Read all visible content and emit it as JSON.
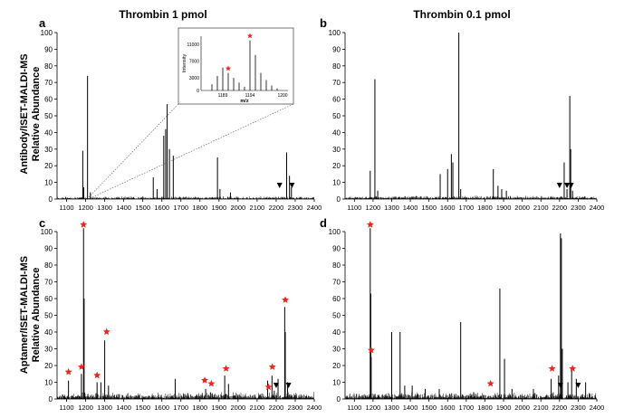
{
  "figure": {
    "column_titles": [
      "Thrombin 1 pmol",
      "Thrombin 0.1 pmol"
    ],
    "row_labels": [
      [
        "Antibody/ISET-MALDI-MS",
        "Relative Abundance"
      ],
      [
        "Aptamer/ISET-MALDI-MS",
        "Relative Abundance"
      ]
    ],
    "colors": {
      "spectrum": "#000000",
      "star": "#e8261c",
      "triangle": "#000000"
    }
  },
  "chart_data": [
    {
      "type": "line",
      "panel": "a",
      "xlim": [
        1050,
        2400
      ],
      "ylim": [
        0,
        100
      ],
      "xticks": [
        "1100",
        "1200",
        "1300",
        "1400",
        "1500",
        "1600",
        "1700",
        "1800",
        "1900",
        "2000",
        "2100",
        "2200",
        "2300",
        "2400"
      ],
      "yticks": [
        "0",
        "10",
        "20",
        "30",
        "40",
        "50",
        "60",
        "70",
        "80",
        "90",
        "100"
      ],
      "noise_level": 1.2,
      "peaks": [
        [
          1185,
          29
        ],
        [
          1190,
          7
        ],
        [
          1210,
          74
        ],
        [
          1225,
          4
        ],
        [
          1555,
          13
        ],
        [
          1575,
          6
        ],
        [
          1610,
          38
        ],
        [
          1620,
          42
        ],
        [
          1628,
          57
        ],
        [
          1640,
          30
        ],
        [
          1660,
          26
        ],
        [
          1892,
          25
        ],
        [
          1905,
          6
        ],
        [
          1960,
          4
        ],
        [
          2255,
          28
        ],
        [
          2270,
          14
        ],
        [
          2280,
          7
        ]
      ],
      "stars": [],
      "triangles": [
        2218,
        2283
      ],
      "inset": {
        "xlabel": "m/z",
        "ylabel": "Intensity",
        "xticks": [
          "1189",
          "1194",
          "1200"
        ],
        "yticks": [
          "0",
          "3000",
          "7000",
          "11000"
        ],
        "xlim": [
          1185,
          1201
        ],
        "ylim": [
          0,
          13000
        ],
        "peaks": [
          [
            1187,
            1500
          ],
          [
            1188,
            3500
          ],
          [
            1189,
            5500
          ],
          [
            1190,
            4200
          ],
          [
            1191,
            3000
          ],
          [
            1192,
            1900
          ],
          [
            1193,
            900
          ],
          [
            1194,
            12000
          ],
          [
            1195,
            8500
          ],
          [
            1196,
            4200
          ],
          [
            1197,
            2500
          ],
          [
            1198,
            1200
          ],
          [
            1199,
            500
          ]
        ],
        "stars": [
          1190,
          1194
        ]
      }
    },
    {
      "type": "line",
      "panel": "b",
      "xlim": [
        1050,
        2400
      ],
      "ylim": [
        0,
        100
      ],
      "xticks": [
        "1100",
        "1200",
        "1300",
        "1400",
        "1500",
        "1600",
        "1700",
        "1800",
        "1900",
        "2000",
        "2100",
        "2200",
        "2300",
        "2400"
      ],
      "yticks": [
        "0",
        "10",
        "20",
        "30",
        "40",
        "50",
        "60",
        "70",
        "80",
        "90",
        "100"
      ],
      "noise_level": 1.5,
      "peaks": [
        [
          1185,
          17
        ],
        [
          1210,
          72
        ],
        [
          1225,
          5
        ],
        [
          1560,
          15
        ],
        [
          1600,
          18
        ],
        [
          1620,
          27
        ],
        [
          1628,
          22
        ],
        [
          1660,
          100
        ],
        [
          1670,
          6
        ],
        [
          1845,
          18
        ],
        [
          1870,
          8
        ],
        [
          1890,
          6
        ],
        [
          1915,
          5
        ],
        [
          2225,
          22
        ],
        [
          2240,
          6
        ],
        [
          2255,
          62
        ],
        [
          2260,
          30
        ],
        [
          2270,
          5
        ]
      ],
      "stars": [],
      "triangles": [
        2200,
        2240,
        2262
      ]
    },
    {
      "type": "line",
      "panel": "c",
      "xlim": [
        1050,
        2400
      ],
      "ylim": [
        0,
        100
      ],
      "xticks": [
        "1100",
        "1200",
        "1300",
        "1400",
        "1500",
        "1600",
        "1700",
        "1800",
        "1900",
        "2000",
        "2100",
        "2200",
        "2300",
        "2400"
      ],
      "yticks": [
        "0",
        "10",
        "20",
        "30",
        "40",
        "50",
        "60",
        "70",
        "80",
        "90",
        "100"
      ],
      "noise_level": 3,
      "peaks": [
        [
          1110,
          11
        ],
        [
          1178,
          15
        ],
        [
          1189,
          102
        ],
        [
          1192,
          60
        ],
        [
          1260,
          10
        ],
        [
          1280,
          10
        ],
        [
          1300,
          35
        ],
        [
          1320,
          8
        ],
        [
          1670,
          12
        ],
        [
          1830,
          6
        ],
        [
          1855,
          4
        ],
        [
          1930,
          14
        ],
        [
          1950,
          9
        ],
        [
          2155,
          11
        ],
        [
          2178,
          14
        ],
        [
          2190,
          5
        ],
        [
          2210,
          12
        ],
        [
          2245,
          55
        ],
        [
          2248,
          40
        ],
        [
          2260,
          10
        ]
      ],
      "stars": [
        [
          1110,
          14
        ],
        [
          1178,
          17
        ],
        [
          1189,
          102
        ],
        [
          1260,
          12
        ],
        [
          1310,
          38
        ],
        [
          1825,
          9
        ],
        [
          1860,
          7
        ],
        [
          1937,
          16
        ],
        [
          2160,
          5
        ],
        [
          2180,
          17
        ],
        [
          2248,
          57
        ]
      ],
      "triangles": [
        2200,
        2265
      ]
    },
    {
      "type": "line",
      "panel": "d",
      "xlim": [
        1050,
        2400
      ],
      "ylim": [
        0,
        100
      ],
      "xticks": [
        "1100",
        "1200",
        "1300",
        "1400",
        "1500",
        "1600",
        "1700",
        "1800",
        "1900",
        "2000",
        "2100",
        "2200",
        "2300",
        "2400"
      ],
      "yticks": [
        "0",
        "10",
        "20",
        "30",
        "40",
        "50",
        "60",
        "70",
        "80",
        "90",
        "100"
      ],
      "noise_level": 3,
      "peaks": [
        [
          1185,
          102
        ],
        [
          1188,
          63
        ],
        [
          1190,
          25
        ],
        [
          1300,
          40
        ],
        [
          1345,
          40
        ],
        [
          1370,
          8
        ],
        [
          1410,
          8
        ],
        [
          1480,
          6
        ],
        [
          1555,
          6
        ],
        [
          1670,
          46
        ],
        [
          1740,
          4
        ],
        [
          1880,
          66
        ],
        [
          1905,
          24
        ],
        [
          1945,
          6
        ],
        [
          2060,
          6
        ],
        [
          2155,
          12
        ],
        [
          2195,
          14
        ],
        [
          2205,
          99
        ],
        [
          2210,
          96
        ],
        [
          2215,
          30
        ],
        [
          2245,
          10
        ],
        [
          2265,
          18
        ],
        [
          2290,
          12
        ],
        [
          2340,
          10
        ]
      ],
      "stars": [
        [
          1185,
          102
        ],
        [
          1190,
          27
        ],
        [
          1830,
          7
        ],
        [
          2160,
          16
        ],
        [
          2270,
          16
        ]
      ],
      "triangles": [
        2205,
        2300
      ]
    }
  ]
}
